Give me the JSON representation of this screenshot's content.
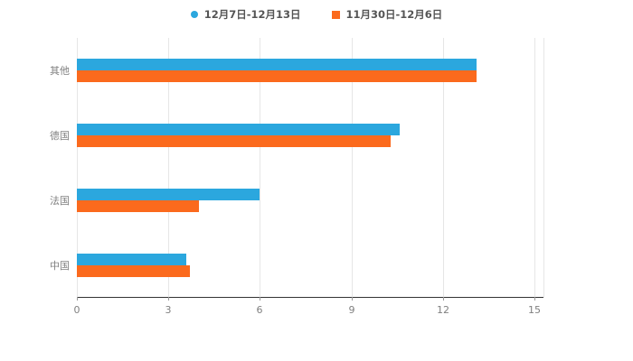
{
  "legend": {
    "items": [
      {
        "label": "12月7日-12月13日",
        "color": "#2BA7DE",
        "marker": "circle"
      },
      {
        "label": "11月30日-12月6日",
        "color": "#FB6A1D",
        "marker": "square"
      }
    ]
  },
  "chart_data": {
    "type": "bar",
    "orientation": "horizontal",
    "title": "",
    "xlabel": "",
    "ylabel": "",
    "categories": [
      "其他",
      "德国",
      "法国",
      "中国"
    ],
    "series": [
      {
        "name": "12月7日-12月13日",
        "color": "#2BA7DE",
        "values": [
          13.1,
          10.6,
          6.0,
          3.6
        ]
      },
      {
        "name": "11月30日-12月6日",
        "color": "#FB6A1D",
        "values": [
          13.1,
          10.3,
          4.0,
          3.7
        ]
      }
    ],
    "xlim": [
      0,
      15.3
    ],
    "xticks": [
      0,
      3,
      6,
      9,
      12,
      15
    ],
    "grid": true,
    "legend_position": "top",
    "colors": {
      "axis_line": "#333333",
      "gridline": "#e6e6e6",
      "label_text": "#808080",
      "legend_text": "#555555",
      "background": "#ffffff"
    }
  }
}
